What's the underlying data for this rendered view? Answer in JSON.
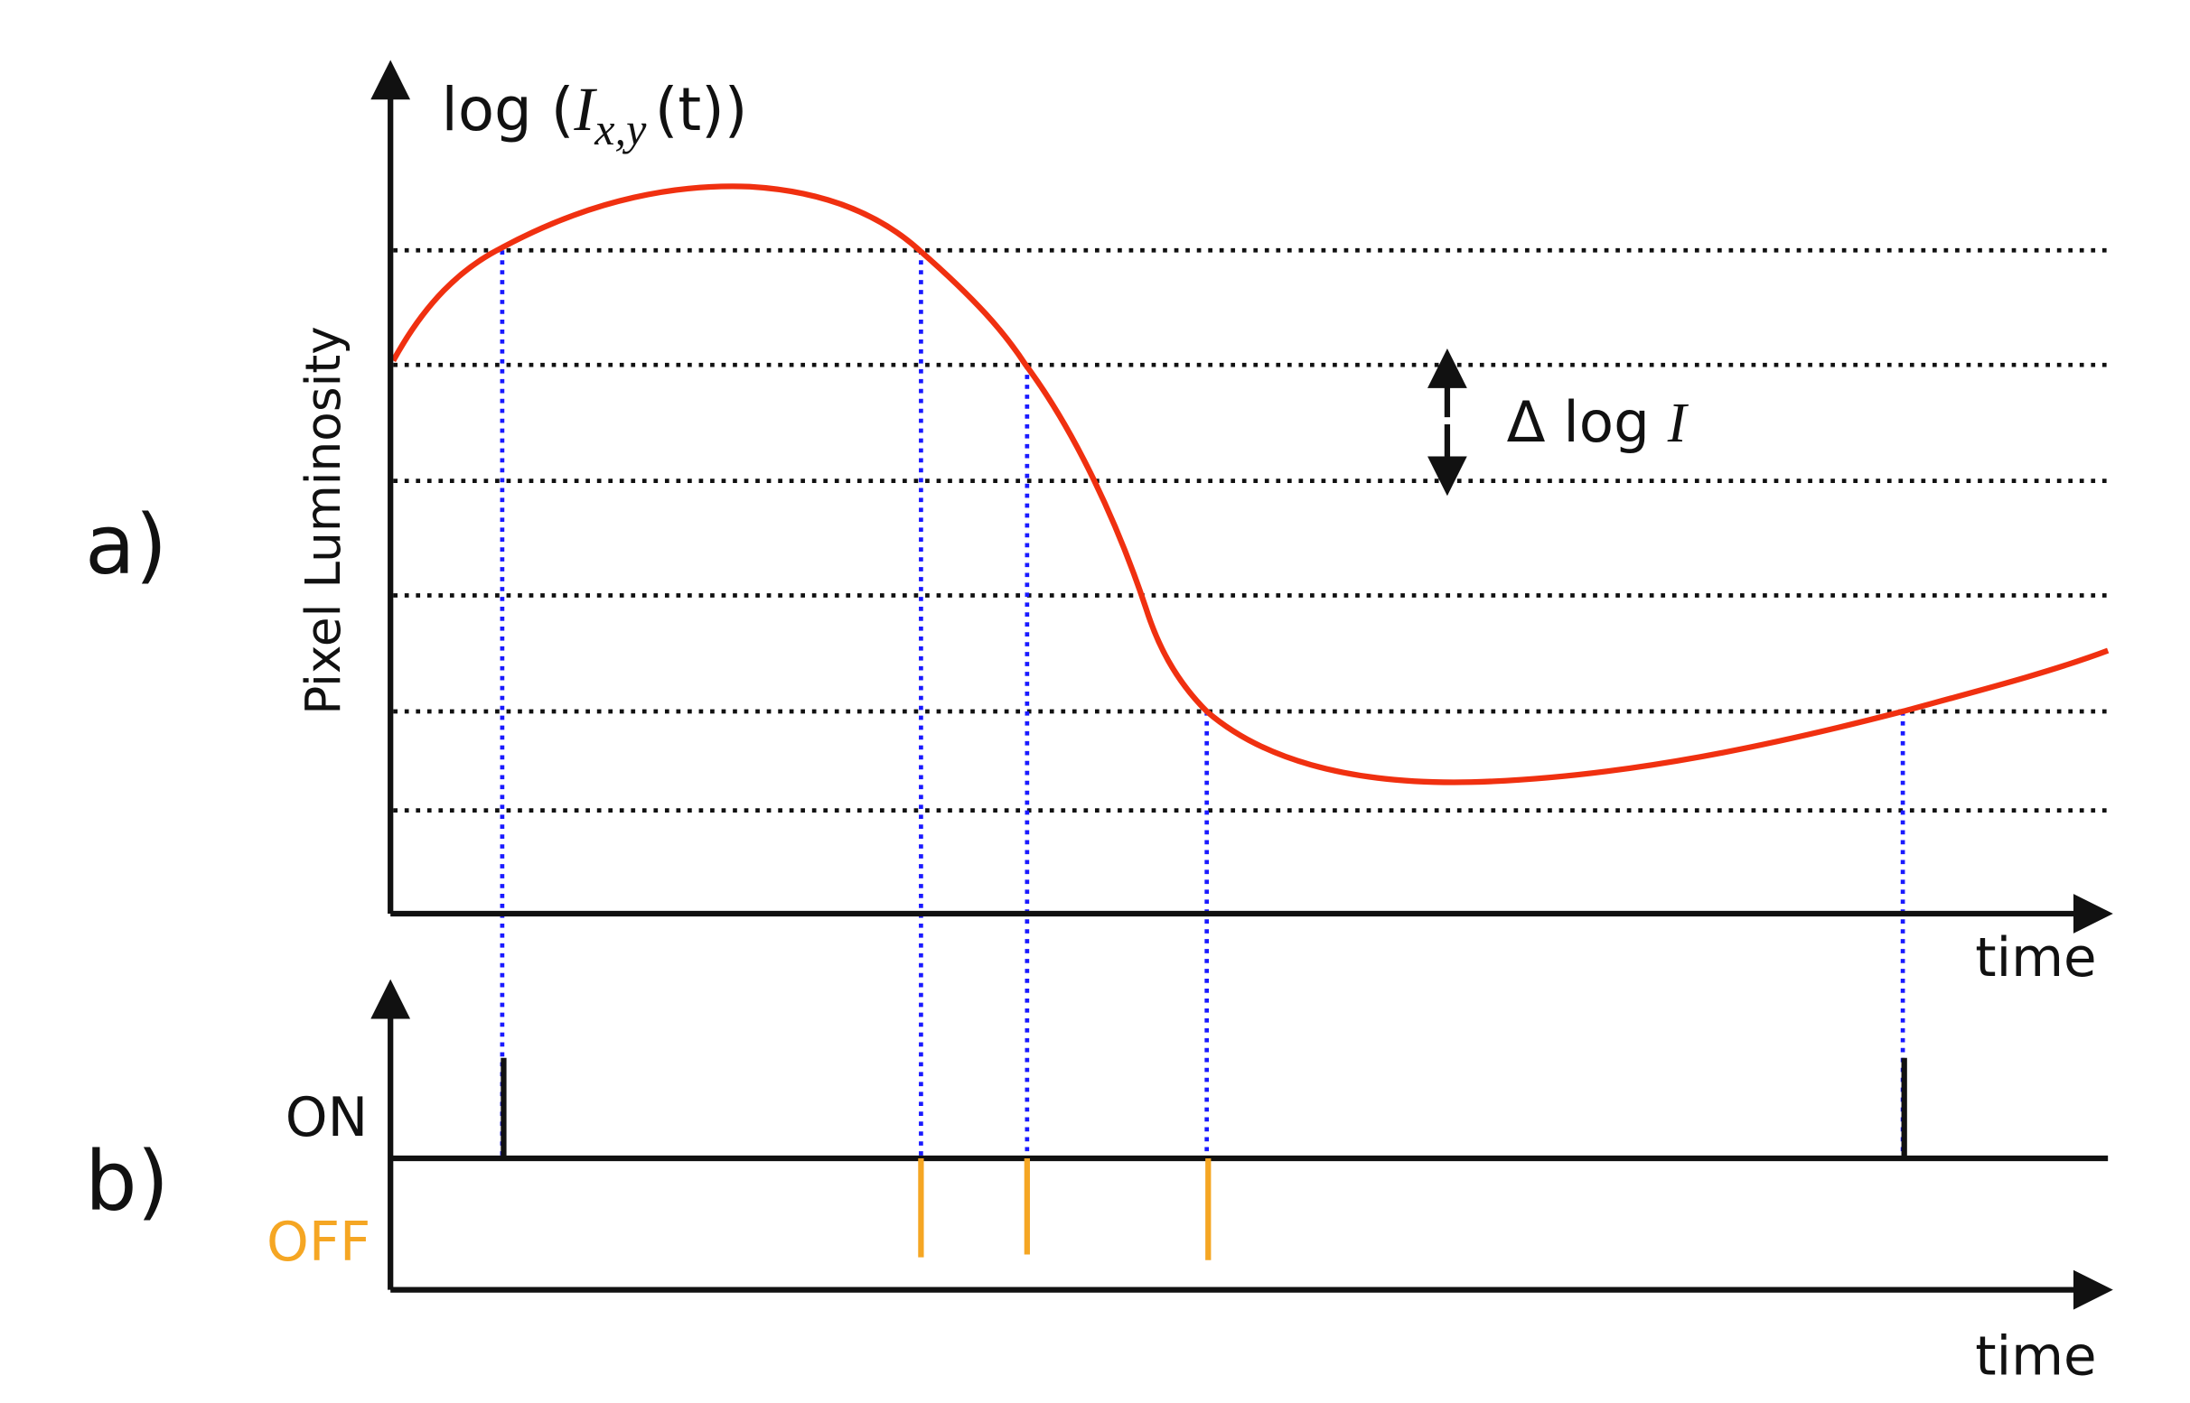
{
  "panel_a": {
    "label": "a)",
    "y_axis_title": {
      "prefix": "log (",
      "symbol": "I",
      "subscript": "x,y",
      "suffix": "(t))"
    },
    "side_label": "Pixel Luminosity",
    "x_axis_label": "time",
    "threshold_label": {
      "prefix": "Δ log",
      "symbol": "I"
    }
  },
  "panel_b": {
    "label": "b)",
    "on_label": "ON",
    "off_label": "OFF",
    "x_axis_label": "time"
  }
}
